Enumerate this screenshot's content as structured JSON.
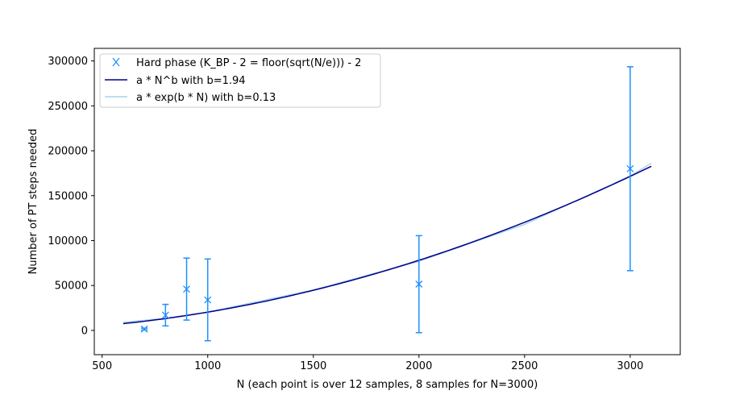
{
  "chart_data": {
    "type": "scatter",
    "title": "",
    "xlabel": "N (each point is over 12 samples, 8 samples for N=3000)",
    "ylabel": "Number of PT steps needed",
    "xlim": [
      463,
      3237
    ],
    "ylim": [
      -27000,
      314000
    ],
    "x_ticks": [
      500,
      1000,
      1500,
      2000,
      2500,
      3000
    ],
    "x_tick_labels": [
      "500",
      "1000",
      "1500",
      "2000",
      "2500",
      "3000"
    ],
    "y_ticks": [
      0,
      50000,
      100000,
      150000,
      200000,
      250000,
      300000
    ],
    "y_tick_labels": [
      "0",
      "50000",
      "100000",
      "150000",
      "200000",
      "250000",
      "300000"
    ],
    "grid": false,
    "legend_position": "top-left",
    "series": [
      {
        "name": "Hard phase (K_BP - 2 = floor(sqrt(N/e))) - 2",
        "kind": "errorbar",
        "marker": "x",
        "color": "#1e90ff",
        "points": [
          {
            "x": 700,
            "y": 1500,
            "lo": 500,
            "hi": 2500
          },
          {
            "x": 800,
            "y": 17000,
            "lo": 5000,
            "hi": 29000
          },
          {
            "x": 900,
            "y": 46000,
            "lo": 11500,
            "hi": 80500
          },
          {
            "x": 1000,
            "y": 34000,
            "lo": -11500,
            "hi": 79500
          },
          {
            "x": 2000,
            "y": 51500,
            "lo": -2500,
            "hi": 105500
          },
          {
            "x": 3000,
            "y": 180000,
            "lo": 66500,
            "hi": 293500
          }
        ]
      },
      {
        "name": "a * N^b with b=1.94",
        "kind": "curve",
        "model": "power",
        "color": "#00008b",
        "a": 0.0308,
        "b": 1.94,
        "x_range": [
          600,
          3100
        ]
      },
      {
        "name": "a * exp(b * N) with b=0.13",
        "kind": "curve",
        "model": "exp",
        "color": "#a6d4ea",
        "x_range": [
          600,
          3100
        ],
        "values": [
          {
            "x": 600,
            "y": 9000
          },
          {
            "x": 800,
            "y": 13500
          },
          {
            "x": 1000,
            "y": 20500
          },
          {
            "x": 1500,
            "y": 45000
          },
          {
            "x": 2000,
            "y": 77000
          },
          {
            "x": 2500,
            "y": 118000
          },
          {
            "x": 3000,
            "y": 172000
          },
          {
            "x": 3100,
            "y": 186000
          }
        ]
      }
    ]
  }
}
